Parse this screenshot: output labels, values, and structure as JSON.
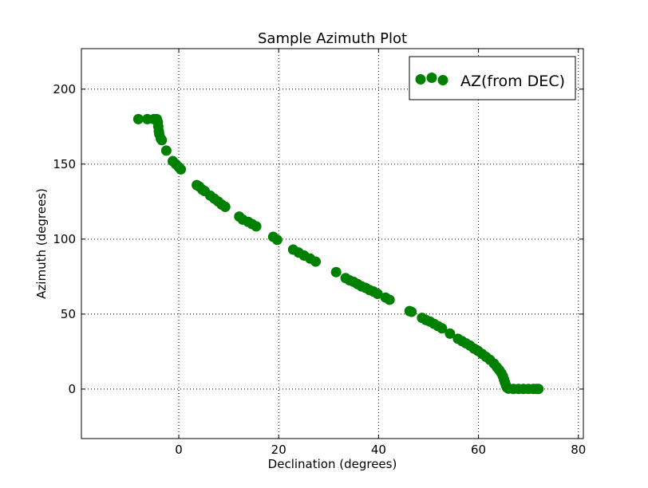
{
  "chart_data": {
    "type": "scatter",
    "title": "Sample Azimuth Plot",
    "xlabel": "Declination (degrees)",
    "ylabel": "Azimuth (degrees)",
    "xlim": [
      -19.5,
      81
    ],
    "ylim": [
      -33,
      227
    ],
    "xticks": [
      0,
      20,
      40,
      60,
      80
    ],
    "yticks": [
      0,
      50,
      100,
      150,
      200
    ],
    "xtick_labels": [
      "0",
      "20",
      "40",
      "60",
      "80"
    ],
    "ytick_labels": [
      "0",
      "50",
      "100",
      "150",
      "200"
    ],
    "grid": true,
    "legend": {
      "position": "top-right",
      "entries": [
        "AZ(from DEC)"
      ]
    },
    "series": [
      {
        "name": "AZ(from DEC)",
        "color": "#008000",
        "marker": "circle",
        "points": [
          [
            -8.1,
            180
          ],
          [
            -6.3,
            180
          ],
          [
            -5.0,
            180
          ],
          [
            -4.4,
            180
          ],
          [
            -4.2,
            178
          ],
          [
            -4.1,
            175
          ],
          [
            -4.0,
            172
          ],
          [
            -3.9,
            170
          ],
          [
            -3.6,
            167
          ],
          [
            -3.4,
            166
          ],
          [
            -2.5,
            159
          ],
          [
            -1.2,
            152
          ],
          [
            -0.6,
            150
          ],
          [
            0.0,
            148
          ],
          [
            0.4,
            146.5
          ],
          [
            3.6,
            136
          ],
          [
            4.1,
            135
          ],
          [
            4.7,
            133
          ],
          [
            5.2,
            132
          ],
          [
            6.3,
            129
          ],
          [
            7.1,
            127
          ],
          [
            7.9,
            125
          ],
          [
            8.6,
            123
          ],
          [
            9.3,
            121.5
          ],
          [
            12.1,
            115
          ],
          [
            12.8,
            113
          ],
          [
            13.9,
            111.5
          ],
          [
            14.7,
            110
          ],
          [
            15.5,
            108.5
          ],
          [
            18.9,
            101.5
          ],
          [
            19.7,
            99.5
          ],
          [
            22.9,
            93
          ],
          [
            24.0,
            91
          ],
          [
            25.1,
            89
          ],
          [
            26.3,
            87
          ],
          [
            27.4,
            85
          ],
          [
            31.5,
            78
          ],
          [
            33.4,
            74
          ],
          [
            34.2,
            72.5
          ],
          [
            35.0,
            71.5
          ],
          [
            35.8,
            70
          ],
          [
            36.6,
            68.5
          ],
          [
            37.4,
            67.5
          ],
          [
            38.2,
            66
          ],
          [
            39.0,
            65
          ],
          [
            39.8,
            63.5
          ],
          [
            41.4,
            61
          ],
          [
            42.2,
            59.5
          ],
          [
            46.2,
            52
          ],
          [
            46.6,
            51.5
          ],
          [
            48.7,
            47.5
          ],
          [
            49.5,
            46
          ],
          [
            50.3,
            45
          ],
          [
            51.1,
            43.5
          ],
          [
            51.9,
            42
          ],
          [
            52.7,
            40.5
          ],
          [
            54.3,
            37
          ],
          [
            55.9,
            33.5
          ],
          [
            56.7,
            32
          ],
          [
            57.5,
            30.5
          ],
          [
            58.3,
            29
          ],
          [
            59.1,
            27
          ],
          [
            59.9,
            25.5
          ],
          [
            60.7,
            23.5
          ],
          [
            61.5,
            21.5
          ],
          [
            62.3,
            19.5
          ],
          [
            63.1,
            17
          ],
          [
            63.7,
            14.5
          ],
          [
            64.2,
            12.5
          ],
          [
            64.6,
            10.5
          ],
          [
            64.9,
            8.5
          ],
          [
            65.1,
            6.5
          ],
          [
            65.3,
            4.5
          ],
          [
            65.5,
            2.5
          ],
          [
            65.7,
            1
          ],
          [
            66.0,
            0.3
          ],
          [
            67.0,
            0.1
          ],
          [
            68.0,
            0.1
          ],
          [
            69.0,
            0.1
          ],
          [
            70.0,
            0.1
          ],
          [
            71.0,
            0.1
          ],
          [
            71.6,
            0.1
          ],
          [
            72.0,
            0.1
          ]
        ]
      }
    ]
  }
}
